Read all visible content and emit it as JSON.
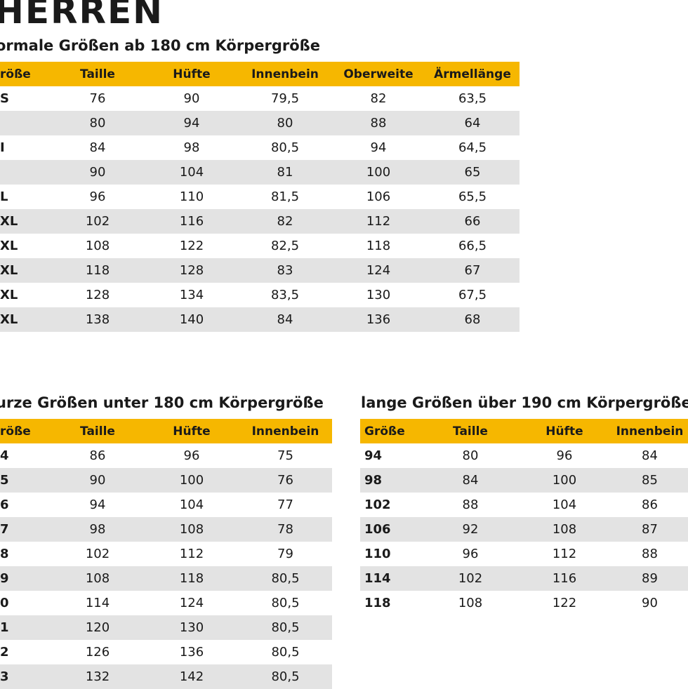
{
  "heading": "HERREN",
  "normal": {
    "title": "ormale Größen ab 180 cm Körpergröße",
    "headers": [
      "röße",
      "Taille",
      "Hüfte",
      "Innenbein",
      "Oberweite",
      "Ärmellänge"
    ],
    "rows": [
      [
        "S",
        "76",
        "90",
        "79,5",
        "82",
        "63,5"
      ],
      [
        "",
        "80",
        "94",
        "80",
        "88",
        "64"
      ],
      [
        "I",
        "84",
        "98",
        "80,5",
        "94",
        "64,5"
      ],
      [
        "",
        "90",
        "104",
        "81",
        "100",
        "65"
      ],
      [
        "L",
        "96",
        "110",
        "81,5",
        "106",
        "65,5"
      ],
      [
        "XL",
        "102",
        "116",
        "82",
        "112",
        "66"
      ],
      [
        "XL",
        "108",
        "122",
        "82,5",
        "118",
        "66,5"
      ],
      [
        "XL",
        "118",
        "128",
        "83",
        "124",
        "67"
      ],
      [
        "XL",
        "128",
        "134",
        "83,5",
        "130",
        "67,5"
      ],
      [
        "XL",
        "138",
        "140",
        "84",
        "136",
        "68"
      ]
    ]
  },
  "short": {
    "title": "urze Größen unter 180 cm Körpergröße",
    "headers": [
      "röße",
      "Taille",
      "Hüfte",
      "Innenbein"
    ],
    "rows": [
      [
        "4",
        "86",
        "96",
        "75"
      ],
      [
        "5",
        "90",
        "100",
        "76"
      ],
      [
        "6",
        "94",
        "104",
        "77"
      ],
      [
        "7",
        "98",
        "108",
        "78"
      ],
      [
        "8",
        "102",
        "112",
        "79"
      ],
      [
        "9",
        "108",
        "118",
        "80,5"
      ],
      [
        "0",
        "114",
        "124",
        "80,5"
      ],
      [
        "1",
        "120",
        "130",
        "80,5"
      ],
      [
        "2",
        "126",
        "136",
        "80,5"
      ],
      [
        "3",
        "132",
        "142",
        "80,5"
      ]
    ]
  },
  "long": {
    "title": "lange Größen über 190 cm Körpergröße",
    "headers": [
      "Größe",
      "Taille",
      "Hüfte",
      "Innenbein"
    ],
    "rows": [
      [
        "94",
        "80",
        "96",
        "84"
      ],
      [
        "98",
        "84",
        "100",
        "85"
      ],
      [
        "102",
        "88",
        "104",
        "86"
      ],
      [
        "106",
        "92",
        "108",
        "87"
      ],
      [
        "110",
        "96",
        "112",
        "88"
      ],
      [
        "114",
        "102",
        "116",
        "89"
      ],
      [
        "118",
        "108",
        "122",
        "90"
      ]
    ]
  },
  "colors": {
    "header_bg": "#f6b700",
    "stripe_bg": "#e3e3e3"
  }
}
